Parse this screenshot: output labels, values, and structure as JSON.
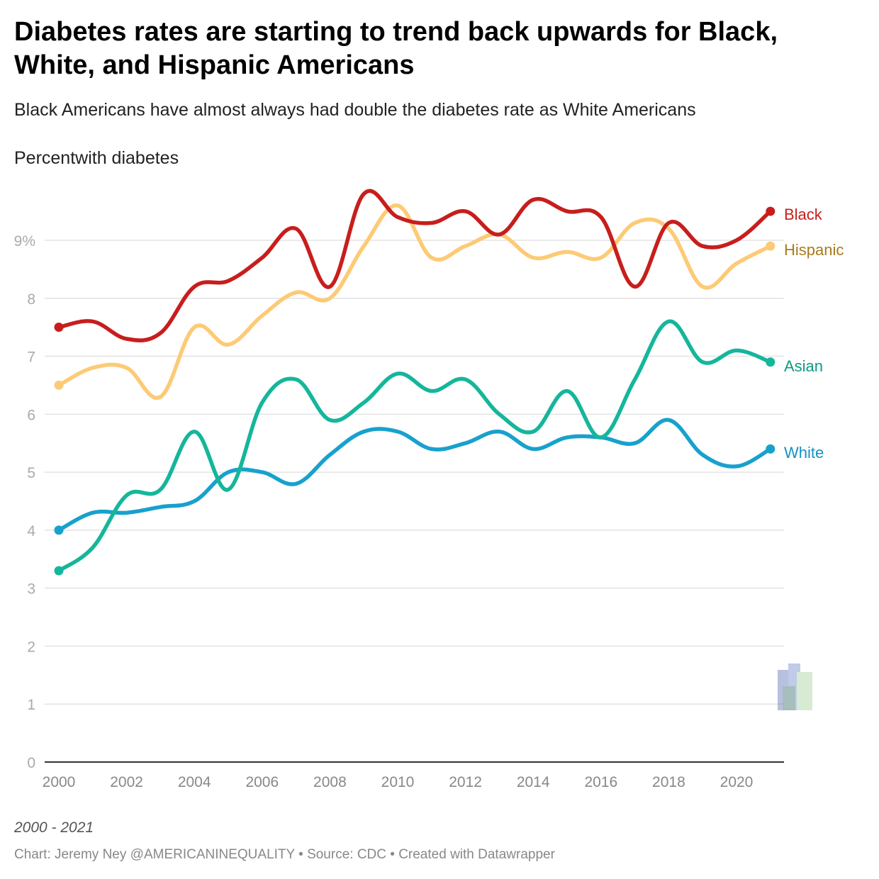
{
  "title": "Diabetes rates are starting to trend back upwards for Black, White, and Hispanic Americans",
  "subtitle": "Black Americans have almost always had double the diabetes rate as White Americans",
  "notes": "2000 - 2021",
  "footer": "Chart: Jeremy Ney @AMERICANINEQUALITY • Source: CDC • Created with Datawrapper",
  "chart_data": {
    "type": "line",
    "title": "Diabetes rates are starting to trend back upwards for Black, White, and Hispanic Americans",
    "ylabel": "Percentwith diabetes",
    "xlabel": "",
    "ylim": [
      0,
      9.9
    ],
    "xlim": [
      2000,
      2021
    ],
    "grid": true,
    "legend": "direct labels at line ends (right)",
    "x": [
      2000,
      2001,
      2002,
      2003,
      2004,
      2005,
      2006,
      2007,
      2008,
      2009,
      2010,
      2011,
      2012,
      2013,
      2014,
      2015,
      2016,
      2017,
      2018,
      2019,
      2020,
      2021
    ],
    "x_ticks": [
      "2000",
      "2002",
      "2004",
      "2006",
      "2008",
      "2010",
      "2012",
      "2014",
      "2016",
      "2018",
      "2020"
    ],
    "x_tick_values": [
      2000,
      2002,
      2004,
      2006,
      2008,
      2010,
      2012,
      2014,
      2016,
      2018,
      2020
    ],
    "y_ticks": [
      "0",
      "1",
      "2",
      "3",
      "4",
      "5",
      "6",
      "7",
      "8",
      "9%"
    ],
    "y_tick_values": [
      0,
      1,
      2,
      3,
      4,
      5,
      6,
      7,
      8,
      9
    ],
    "series": [
      {
        "name": "Black",
        "color": "#c71e1d",
        "label_color": "#c71e1d",
        "values": [
          7.5,
          7.6,
          7.3,
          7.4,
          8.2,
          8.3,
          8.7,
          9.2,
          8.2,
          9.8,
          9.4,
          9.3,
          9.5,
          9.1,
          9.7,
          9.5,
          9.4,
          8.2,
          9.3,
          8.9,
          9.0,
          9.5
        ]
      },
      {
        "name": "Hispanic",
        "color": "#fdca75",
        "label_color": "#a87a1c",
        "values": [
          6.5,
          6.8,
          6.8,
          6.3,
          7.5,
          7.2,
          7.7,
          8.1,
          8.0,
          8.9,
          9.6,
          8.7,
          8.9,
          9.1,
          8.7,
          8.8,
          8.7,
          9.3,
          9.2,
          8.2,
          8.6,
          8.9
        ]
      },
      {
        "name": "Asian",
        "color": "#15b69b",
        "label_color": "#0e9a80",
        "values": [
          3.3,
          3.7,
          4.6,
          4.7,
          5.7,
          4.7,
          6.2,
          6.6,
          5.9,
          6.2,
          6.7,
          6.4,
          6.6,
          6.0,
          5.7,
          6.4,
          5.6,
          6.6,
          7.6,
          6.9,
          7.1,
          6.9
        ]
      },
      {
        "name": "White",
        "color": "#18a1cd",
        "label_color": "#1593c0",
        "values": [
          4.0,
          4.3,
          4.3,
          4.4,
          4.5,
          5.0,
          5.0,
          4.8,
          5.3,
          5.7,
          5.7,
          5.4,
          5.5,
          5.7,
          5.4,
          5.6,
          5.6,
          5.5,
          5.9,
          5.3,
          5.1,
          5.4
        ]
      }
    ]
  }
}
